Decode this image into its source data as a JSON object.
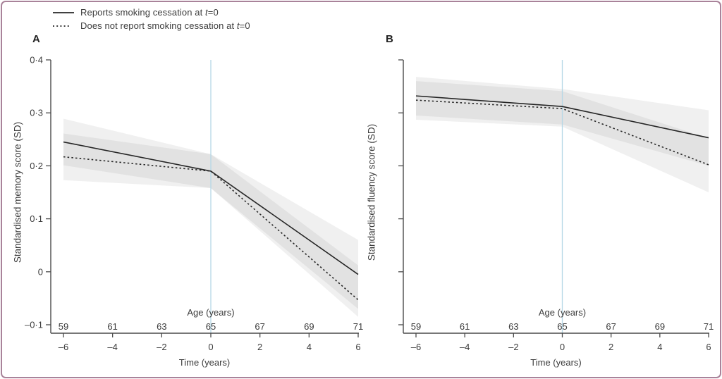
{
  "figure": {
    "accent_border_color": "#a9839a",
    "vline_color": "#b5d7e6",
    "band_fill": "rgba(135,135,135,0.12)",
    "line_color": "#262626",
    "axis_color": "#4a4a4a",
    "text_color": "#3c3c3c"
  },
  "legend": {
    "items": [
      {
        "style": "solid",
        "prefix": "Reports smoking cessation at ",
        "italic": "t",
        "suffix": "=0"
      },
      {
        "style": "dotted",
        "prefix": "Does not report smoking cessation at ",
        "italic": "t",
        "suffix": "=0"
      }
    ]
  },
  "chart_data": [
    {
      "type": "line",
      "panel_label": "A",
      "ylabel": "Standardised memory score (SD)",
      "xlabel": "Time (years)",
      "x2label": "Age (years)",
      "xlim": [
        -6,
        6
      ],
      "ylim": [
        -0.1,
        0.4
      ],
      "grid": false,
      "vline_x": 0,
      "x_ticks": [
        -6,
        -4,
        -2,
        0,
        2,
        4,
        6
      ],
      "x_tick_labels": [
        "–6",
        "–4",
        "–2",
        "0",
        "2",
        "4",
        "6"
      ],
      "age_labels": [
        "59",
        "61",
        "63",
        "65",
        "67",
        "69",
        "71"
      ],
      "y_ticks": [
        0.4,
        0.3,
        0.2,
        0.1,
        0,
        -0.1
      ],
      "y_tick_labels": [
        "0·4",
        "0·3",
        "0·2",
        "0·1",
        "0",
        "–0·1"
      ],
      "x": [
        -6,
        0,
        6
      ],
      "series": [
        {
          "name": "Reports smoking cessation at t=0",
          "style": "solid",
          "values": [
            0.245,
            0.19,
            -0.005
          ],
          "ci_lower": [
            0.201,
            0.158,
            -0.07
          ],
          "ci_upper": [
            0.289,
            0.222,
            0.06
          ]
        },
        {
          "name": "Does not report smoking cessation at t=0",
          "style": "dotted",
          "values": [
            0.217,
            0.19,
            -0.053
          ],
          "ci_lower": [
            0.173,
            0.158,
            -0.085
          ],
          "ci_upper": [
            0.261,
            0.222,
            0.012
          ]
        }
      ]
    },
    {
      "type": "line",
      "panel_label": "B",
      "ylabel": "Standardised fluency score (SD)",
      "xlabel": "Time (years)",
      "x2label": "Age (years)",
      "xlim": [
        -6,
        6
      ],
      "ylim": [
        -0.1,
        0.4
      ],
      "grid": false,
      "vline_x": 0,
      "x_ticks": [
        -6,
        -4,
        -2,
        0,
        2,
        4,
        6
      ],
      "x_tick_labels": [
        "–6",
        "–4",
        "–2",
        "0",
        "2",
        "4",
        "6"
      ],
      "age_labels": [
        "59",
        "61",
        "63",
        "65",
        "67",
        "69",
        "71"
      ],
      "y_ticks": [
        0.4,
        0.3,
        0.2,
        0.1,
        0,
        -0.1
      ],
      "y_tick_labels": [
        "",
        "",
        "",
        "",
        "",
        ""
      ],
      "x": [
        -6,
        0,
        6
      ],
      "series": [
        {
          "name": "Reports smoking cessation at t=0",
          "style": "solid",
          "values": [
            0.332,
            0.312,
            0.253
          ],
          "ci_lower": [
            0.295,
            0.278,
            0.2
          ],
          "ci_upper": [
            0.368,
            0.345,
            0.305
          ]
        },
        {
          "name": "Does not report smoking cessation at t=0",
          "style": "dotted",
          "values": [
            0.324,
            0.308,
            0.202
          ],
          "ci_lower": [
            0.287,
            0.274,
            0.15
          ],
          "ci_upper": [
            0.36,
            0.341,
            0.252
          ]
        }
      ]
    }
  ]
}
